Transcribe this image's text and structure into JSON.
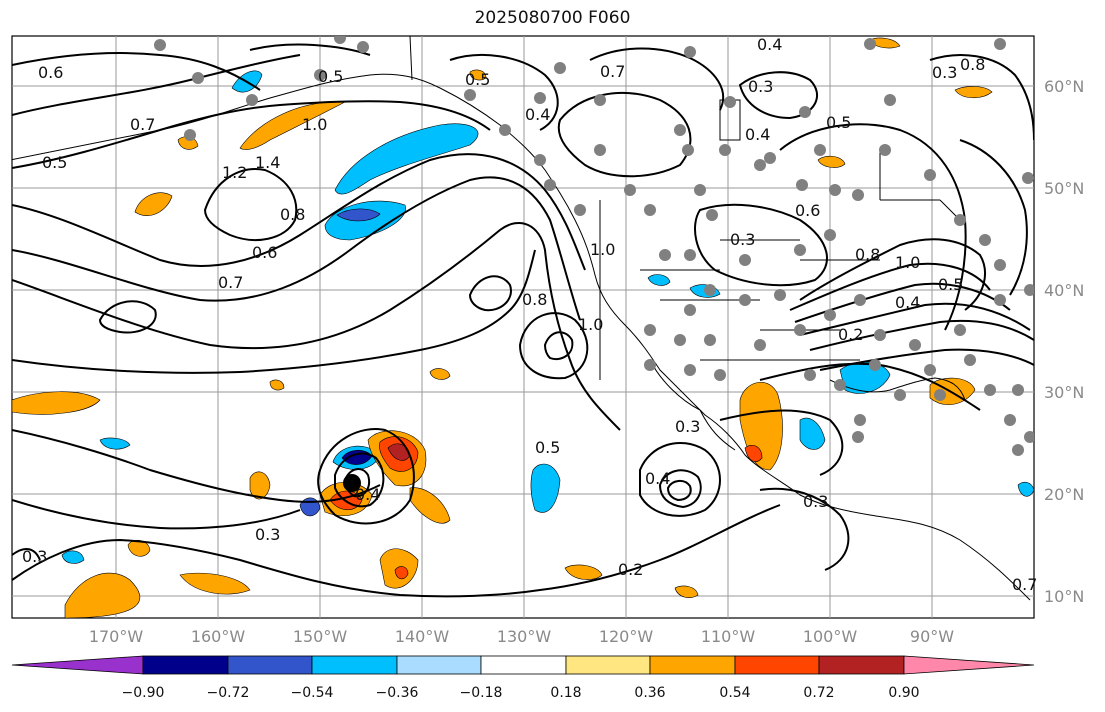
{
  "title": "2025080700 F060",
  "lat_labels": [
    "60°N",
    "50°N",
    "40°N",
    "30°N",
    "20°N",
    "10°N"
  ],
  "lon_labels": [
    "170°W",
    "160°W",
    "150°W",
    "140°W",
    "130°W",
    "120°W",
    "110°W",
    "100°W",
    "90°W"
  ],
  "contour_labels": [
    "0.6",
    "0.7",
    "0.5",
    "1.0",
    "1.2",
    "1.4",
    "0.8",
    "0.6",
    "0.7",
    "0.4",
    "0.5",
    "0.3",
    "0.4",
    "0.5",
    "0.7",
    "0.8",
    "0.4",
    "0.3",
    "0.5",
    "0.6",
    "1.0",
    "0.8",
    "0.3",
    "1.0",
    "0.8",
    "1.0",
    "0.4",
    "0.5",
    "0.2",
    "0.3",
    "0.4",
    "0.3",
    "0.4",
    "0.5",
    "0.3",
    "0.2",
    "0.3",
    "0.7"
  ],
  "colorbar": {
    "ticks": [
      "−0.90",
      "−0.72",
      "−0.54",
      "−0.36",
      "−0.18",
      "0.18",
      "0.36",
      "0.54",
      "0.72",
      "0.90"
    ],
    "colors": [
      "#9932cc",
      "#00008b",
      "#3355cc",
      "#00bfff",
      "#aadcff",
      "#ffffff",
      "#ffe680",
      "#ffa500",
      "#ff4500",
      "#b22222",
      "#ff88aa"
    ]
  },
  "fill_colors": {
    "neg_light": "#00bfff",
    "neg_mid": "#3355cc",
    "neg_dark": "#00008b",
    "pos_light": "#ffa500",
    "pos_mid": "#ff4500",
    "pos_dark": "#b22222",
    "pos_pale": "#ffe680"
  }
}
